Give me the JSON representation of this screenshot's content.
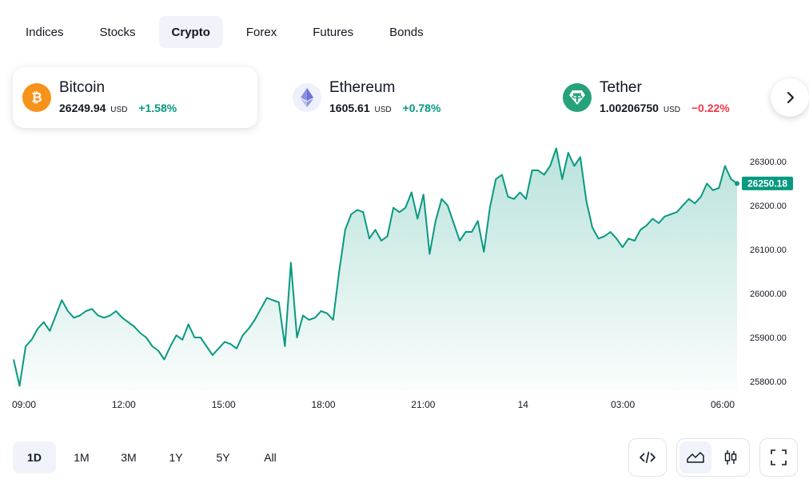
{
  "tabs": [
    {
      "label": "Indices",
      "active": false
    },
    {
      "label": "Stocks",
      "active": false
    },
    {
      "label": "Crypto",
      "active": true
    },
    {
      "label": "Forex",
      "active": false
    },
    {
      "label": "Futures",
      "active": false
    },
    {
      "label": "Bonds",
      "active": false
    }
  ],
  "coins": [
    {
      "name": "Bitcoin",
      "price": "26249.94",
      "currency": "USD",
      "change": "+1.58%",
      "direction": "up",
      "icon": "bitcoin-icon",
      "color": "#f7931a",
      "active": true
    },
    {
      "name": "Ethereum",
      "price": "1605.61",
      "currency": "USD",
      "change": "+0.78%",
      "direction": "up",
      "icon": "ethereum-icon",
      "color": "#627eea",
      "active": false
    },
    {
      "name": "Tether",
      "price": "1.00206750",
      "currency": "USD",
      "change": "−0.22%",
      "direction": "down",
      "icon": "tether-icon",
      "color": "#26a17b",
      "active": false
    }
  ],
  "next_button_icon": "chevron-right-icon",
  "chart_data": {
    "type": "area",
    "xlabels": [
      "09:00",
      "12:00",
      "15:00",
      "18:00",
      "21:00",
      "14",
      "03:00",
      "06:00"
    ],
    "ytick_labels": [
      "25800.00",
      "25900.00",
      "26000.00",
      "26100.00",
      "26200.00",
      "26300.00"
    ],
    "ylim": [
      25780,
      26340
    ],
    "last_price_label": "26250.18",
    "last_price": 26250.18,
    "line_color": "#089981",
    "series": [
      {
        "values": [
          25850,
          25790,
          25880,
          25895,
          25920,
          25935,
          25915,
          25950,
          25985,
          25960,
          25945,
          25950,
          25960,
          25965,
          25950,
          25945,
          25950,
          25960,
          25945,
          25935,
          25925,
          25910,
          25900,
          25880,
          25870,
          25850,
          25880,
          25905,
          25895,
          25930,
          25900,
          25900,
          25880,
          25860,
          25875,
          25890,
          25885,
          25875,
          25905,
          25920,
          25940,
          25965,
          25990,
          25985,
          25980,
          25880,
          26070,
          25900,
          25950,
          25940,
          25945,
          25960,
          25955,
          25940,
          26050,
          26145,
          26180,
          26190,
          26185,
          26125,
          26145,
          26120,
          26130,
          26195,
          26185,
          26195,
          26230,
          26170,
          26225,
          26090,
          26165,
          26215,
          26200,
          26160,
          26120,
          26140,
          26140,
          26165,
          26095,
          26195,
          26260,
          26270,
          26220,
          26215,
          26230,
          26215,
          26280,
          26280,
          26270,
          26290,
          26330,
          26260,
          26320,
          26290,
          26310,
          26210,
          26150,
          26125,
          26130,
          26140,
          26125,
          26105,
          26125,
          26120,
          26145,
          26155,
          26170,
          26160,
          26175,
          26180,
          26185,
          26200,
          26215,
          26205,
          26220,
          26250,
          26235,
          26240,
          26290,
          26260,
          26250
        ]
      }
    ]
  },
  "ranges": [
    {
      "label": "1D",
      "active": true
    },
    {
      "label": "1M",
      "active": false
    },
    {
      "label": "3M",
      "active": false
    },
    {
      "label": "1Y",
      "active": false
    },
    {
      "label": "5Y",
      "active": false
    },
    {
      "label": "All",
      "active": false
    }
  ],
  "tools": {
    "embed_icon": "code-icon",
    "area_icon": "area-chart-icon",
    "candles_icon": "candlestick-icon",
    "fullscreen_icon": "fullscreen-icon"
  }
}
